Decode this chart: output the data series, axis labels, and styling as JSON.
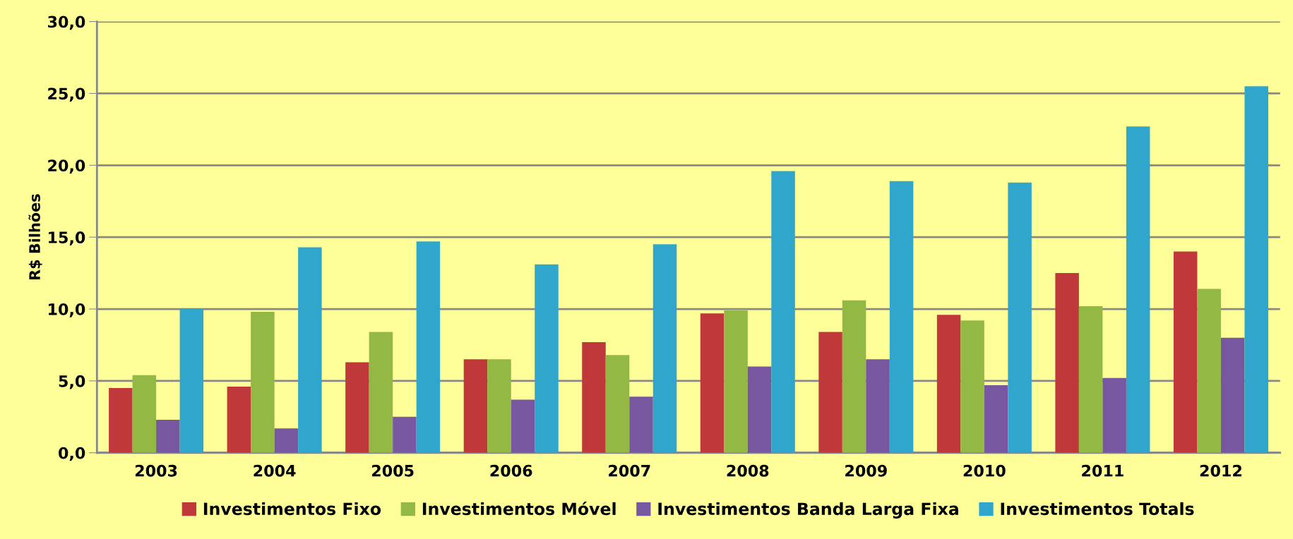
{
  "chart_data": {
    "type": "bar",
    "ylabel": "R$ Bilhões",
    "categories": [
      "2003",
      "2004",
      "2005",
      "2006",
      "2007",
      "2008",
      "2009",
      "2010",
      "2011",
      "2012"
    ],
    "series": [
      {
        "name": "Investimentos Fixo",
        "color": "#c0393a",
        "values": [
          4.5,
          4.6,
          6.3,
          6.5,
          7.7,
          9.7,
          8.4,
          9.6,
          12.5,
          14.0
        ]
      },
      {
        "name": "Investimentos Móvel",
        "color": "#93b844",
        "values": [
          5.4,
          9.8,
          8.4,
          6.5,
          6.8,
          9.9,
          10.6,
          9.2,
          10.2,
          11.4
        ]
      },
      {
        "name": "Investimentos Banda Larga Fixa",
        "color": "#7757a0",
        "values": [
          2.3,
          1.7,
          2.5,
          3.7,
          3.9,
          6.0,
          6.5,
          4.7,
          5.2,
          8.0
        ]
      },
      {
        "name": "Investimentos Totals",
        "color": "#30a6cc",
        "values": [
          10.0,
          14.3,
          14.7,
          13.1,
          14.5,
          19.6,
          18.9,
          18.8,
          22.7,
          25.5
        ]
      }
    ],
    "ylim": [
      0,
      30
    ],
    "yticks": [
      {
        "value": 0,
        "label": "0,0"
      },
      {
        "value": 5,
        "label": "5,0"
      },
      {
        "value": 10,
        "label": "10,0"
      },
      {
        "value": 15,
        "label": "15,0"
      },
      {
        "value": 20,
        "label": "20,0"
      },
      {
        "value": 25,
        "label": "25,0"
      },
      {
        "value": 30,
        "label": "30,0"
      }
    ],
    "grid": "y",
    "legend": "bottom"
  }
}
